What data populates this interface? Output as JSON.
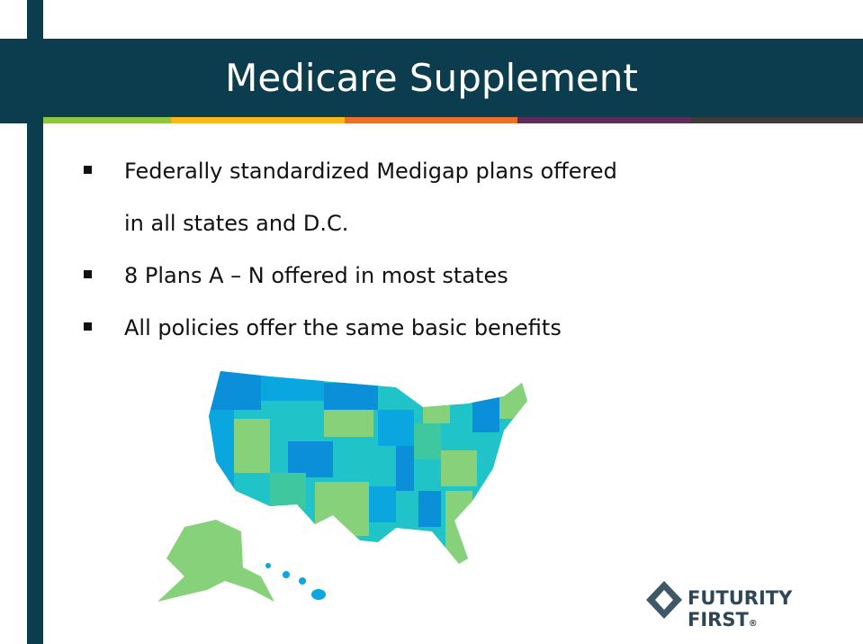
{
  "header": {
    "title": "Medicare Supplement"
  },
  "bullets": [
    [
      "Federally standardized Medigap plans offered",
      "in all states and D.C."
    ],
    [
      "8 Plans A – N offered in most states"
    ],
    [
      "All policies offer the same basic benefits"
    ]
  ],
  "logo": {
    "name": "FUTURITY FIRST",
    "mark": "®"
  }
}
